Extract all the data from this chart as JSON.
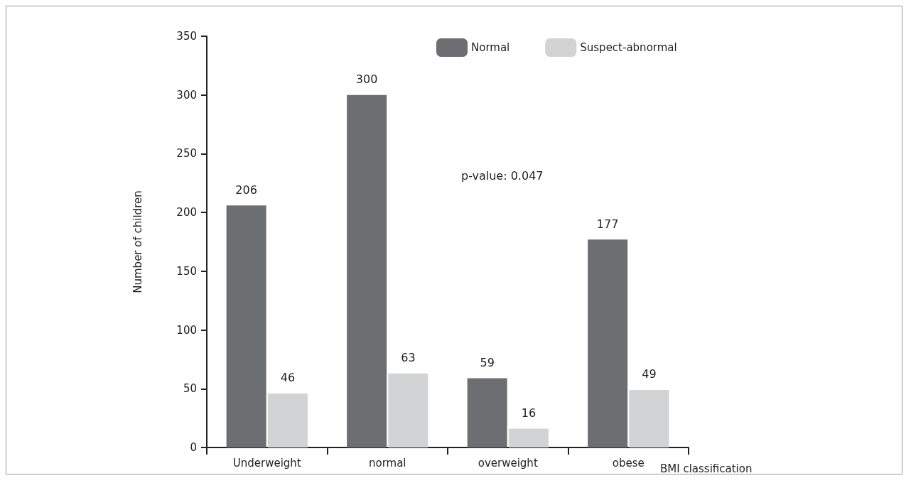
{
  "chart_data": {
    "type": "bar",
    "xlabel": "BMI classification",
    "ylabel": "Number of children",
    "categories": [
      "Underweight",
      "normal",
      "overweight",
      "obese"
    ],
    "series": [
      {
        "name": "Normal",
        "color": "#6d6e71",
        "values": [
          206,
          300,
          59,
          177
        ]
      },
      {
        "name": "Suspect-abnormal",
        "color": "#d1d3d4",
        "values": [
          46,
          63,
          16,
          49
        ]
      }
    ],
    "ylim": [
      0,
      350
    ],
    "yticks": [
      0,
      50,
      100,
      150,
      200,
      250,
      300,
      350
    ],
    "grid": false,
    "legend": "top",
    "data_labels": true,
    "annotations": [
      "p-value: 0.047"
    ]
  }
}
